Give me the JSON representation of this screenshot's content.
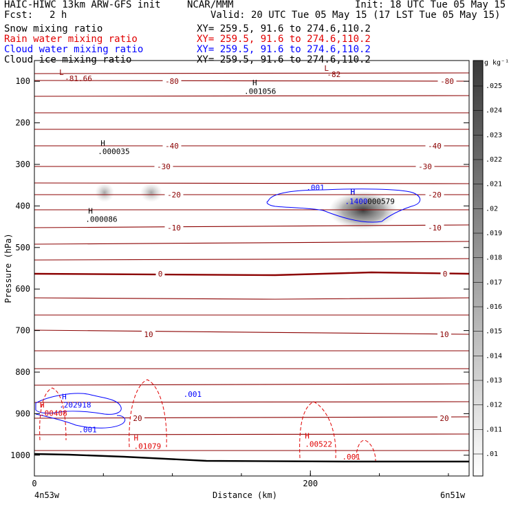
{
  "header": {
    "model": "HAIC-HIWC 13km ARW-GFS init",
    "org": "NCAR/MMM",
    "init": "Init: 18 UTC Tue 05 May 15",
    "fcst_label": "Fcst:",
    "fcst_value": "2 h",
    "valid": "Valid: 20 UTC Tue 05 May 15 (17 LST Tue 05 May 15)",
    "fields": [
      {
        "name": "Snow mixing ratio",
        "xy": "XY= 259.5, 91.6 to 274.6,110.2",
        "color": "#000000"
      },
      {
        "name": "Rain water mixing ratio",
        "xy": "XY= 259.5, 91.6 to 274.6,110.2",
        "color": "#e00000"
      },
      {
        "name": "Cloud water mixing ratio",
        "xy": "XY= 259.5, 91.6 to 274.6,110.2",
        "color": "#0000ff"
      },
      {
        "name": "Cloud ice mixing ratio",
        "xy": "XY= 259.5, 91.6 to 274.6,110.2",
        "color": "#000000"
      }
    ]
  },
  "chart_data": {
    "type": "cross-section contour",
    "ylabel": "Pressure (hPa)",
    "xlabel": "Distance (km)",
    "y_ticks": [
      100,
      200,
      300,
      400,
      500,
      600,
      700,
      800,
      900,
      1000
    ],
    "y_range": [
      50,
      1050
    ],
    "x_ticks": [
      0,
      200
    ],
    "x_range": [
      0,
      315
    ],
    "x_left_label": "4n53w",
    "x_right_label": "6n51w",
    "colorbar": {
      "unit": "g kg⁻¹",
      "levels": [
        ".025",
        ".024",
        ".023",
        ".022",
        ".021",
        ".02",
        ".019",
        ".018",
        ".017",
        ".016",
        ".015",
        ".014",
        ".013",
        ".012",
        ".011",
        ".01"
      ]
    },
    "temperature_contour_labels": [
      "-80",
      "-40",
      "-30",
      "-20",
      "-10",
      "0",
      "10",
      "20"
    ],
    "annotations": [
      {
        "text": "L",
        "x": 18,
        "p": 85,
        "color": "#8b0000"
      },
      {
        "text": "-81.66",
        "x": 22,
        "p": 100,
        "color": "#8b0000"
      },
      {
        "text": "L",
        "x": 210,
        "p": 75,
        "color": "#8b0000"
      },
      {
        "text": "-82",
        "x": 212,
        "p": 90,
        "color": "#8b0000"
      },
      {
        "text": "H",
        "x": 158,
        "p": 110,
        "color": "#000000"
      },
      {
        "text": ".001056",
        "x": 152,
        "p": 130,
        "color": "#000000"
      },
      {
        "text": "H",
        "x": 48,
        "p": 255,
        "color": "#000000"
      },
      {
        "text": ".000035",
        "x": 46,
        "p": 275,
        "color": "#000000"
      },
      {
        "text": "H",
        "x": 39,
        "p": 418,
        "color": "#000000"
      },
      {
        "text": ".000086",
        "x": 37,
        "p": 438,
        "color": "#000000"
      },
      {
        "text": "H",
        "x": 229,
        "p": 372,
        "color": "#000000"
      },
      {
        "text": "H",
        "x": 229,
        "p": 372,
        "color": "#0000ff"
      },
      {
        "text": ".1400",
        "x": 225,
        "p": 395,
        "color": "#0000ff"
      },
      {
        "text": ".000579",
        "x": 238,
        "p": 395,
        "color": "#000000"
      },
      {
        "text": ".001",
        "x": 197,
        "p": 362,
        "color": "#0000ff"
      },
      {
        "text": "H",
        "x": 20,
        "p": 865,
        "color": "#0000ff"
      },
      {
        "text": ".202918",
        "x": 18,
        "p": 885,
        "color": "#0000ff"
      },
      {
        "text": ".001",
        "x": 108,
        "p": 860,
        "color": "#0000ff"
      },
      {
        "text": ".001",
        "x": 32,
        "p": 945,
        "color": "#0000ff"
      },
      {
        "text": "H",
        "x": 4,
        "p": 885,
        "color": "#e00000"
      },
      {
        "text": ".00408",
        "x": 4,
        "p": 905,
        "color": "#e00000"
      },
      {
        "text": "H",
        "x": 72,
        "p": 965,
        "color": "#e00000"
      },
      {
        "text": ".01079",
        "x": 72,
        "p": 985,
        "color": "#e00000"
      },
      {
        "text": "H",
        "x": 196,
        "p": 960,
        "color": "#e00000"
      },
      {
        "text": ".00522",
        "x": 196,
        "p": 980,
        "color": "#e00000"
      },
      {
        "text": ".001",
        "x": 223,
        "p": 1010,
        "color": "#e00000"
      }
    ]
  }
}
